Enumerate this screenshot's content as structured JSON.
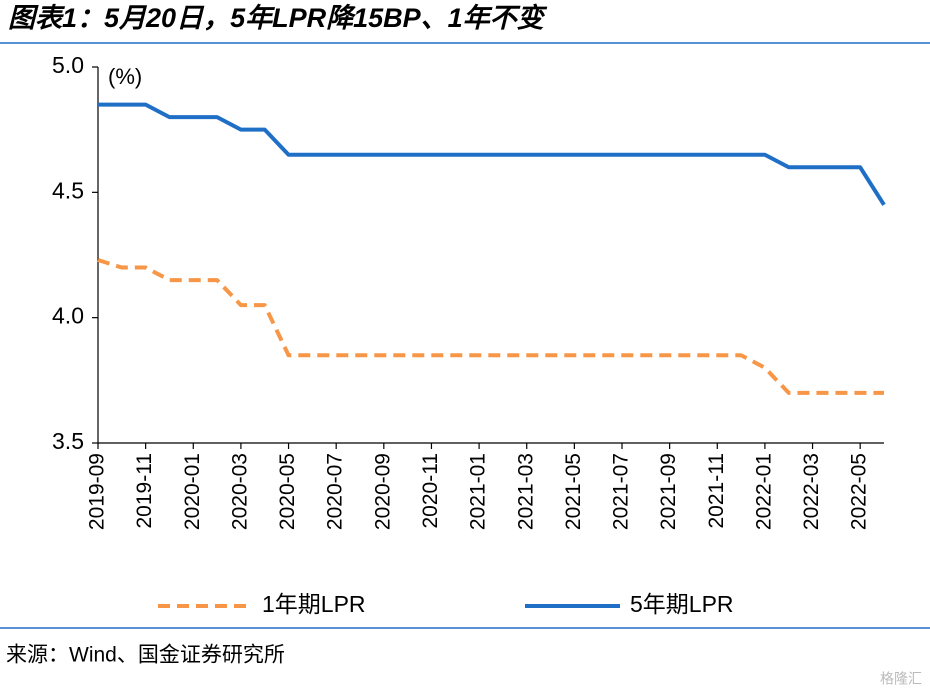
{
  "chart_data": {
    "type": "line",
    "title": "图表1：5月20日，5年LPR降15BP、1年不变",
    "y_unit": "(%)",
    "source": "来源：Wind、国金证券研究所",
    "watermark": "格隆汇",
    "categories": [
      "2019-09",
      null,
      "2019-11",
      null,
      "2020-01",
      null,
      "2020-03",
      null,
      "2020-05",
      null,
      "2020-07",
      null,
      "2020-09",
      null,
      "2020-11",
      null,
      "2021-01",
      null,
      "2021-03",
      null,
      "2021-05",
      null,
      "2021-07",
      null,
      "2021-09",
      null,
      "2021-11",
      null,
      "2022-01",
      null,
      "2022-03",
      null,
      "2022-05",
      null
    ],
    "series": [
      {
        "name": "1年期LPR",
        "color": "#f79646",
        "dash": true,
        "values": [
          4.23,
          4.2,
          4.2,
          4.15,
          4.15,
          4.15,
          4.05,
          4.05,
          3.85,
          3.85,
          3.85,
          3.85,
          3.85,
          3.85,
          3.85,
          3.85,
          3.85,
          3.85,
          3.85,
          3.85,
          3.85,
          3.85,
          3.85,
          3.85,
          3.85,
          3.85,
          3.85,
          3.85,
          3.8,
          3.7,
          3.7,
          3.7,
          3.7,
          3.7
        ]
      },
      {
        "name": "5年期LPR",
        "color": "#1f6fc7",
        "dash": false,
        "values": [
          4.85,
          4.85,
          4.85,
          4.8,
          4.8,
          4.8,
          4.75,
          4.75,
          4.65,
          4.65,
          4.65,
          4.65,
          4.65,
          4.65,
          4.65,
          4.65,
          4.65,
          4.65,
          4.65,
          4.65,
          4.65,
          4.65,
          4.65,
          4.65,
          4.65,
          4.65,
          4.65,
          4.65,
          4.65,
          4.6,
          4.6,
          4.6,
          4.6,
          4.45
        ]
      }
    ],
    "ylim": [
      3.5,
      5.0
    ],
    "yticks": [
      {
        "value": 3.5,
        "label": "3.5"
      },
      {
        "value": 4.0,
        "label": "4.0"
      },
      4.5,
      {
        "value": 5.0,
        "label": "5.0"
      }
    ]
  }
}
